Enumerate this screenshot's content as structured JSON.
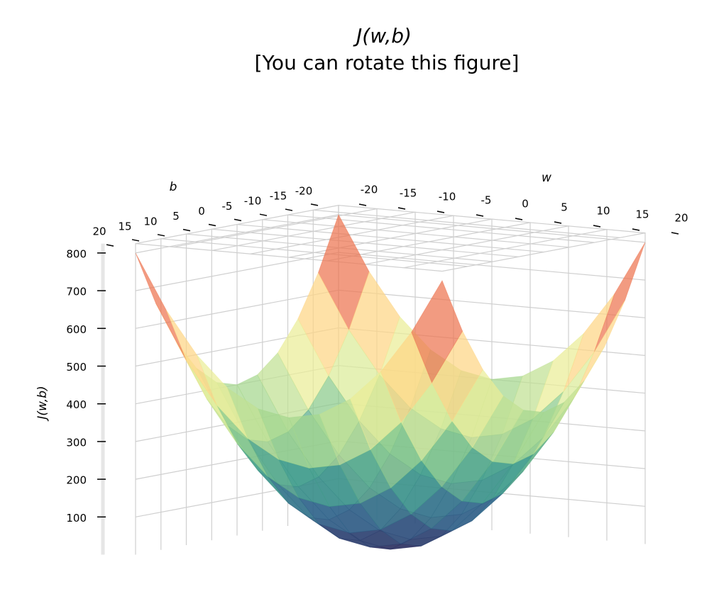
{
  "chart_data": {
    "type": "surface",
    "title": "J(w,b)",
    "subtitle": "[You can rotate this figure]",
    "xlabel": "w",
    "ylabel": "b",
    "zlabel": "J(w,b)",
    "xlim": [
      -20,
      20
    ],
    "ylim": [
      -20,
      20
    ],
    "zlim": [
      0,
      825
    ],
    "xticks": [
      -20,
      -15,
      -10,
      -5,
      0,
      5,
      10,
      15,
      20
    ],
    "yticks": [
      -20,
      -15,
      -10,
      -5,
      0,
      5,
      10,
      15,
      20
    ],
    "zticks": [
      100,
      200,
      300,
      400,
      500,
      600,
      700,
      800
    ],
    "grid": true,
    "colorscale": [
      "#2e2a5c",
      "#2f5f8a",
      "#3e9a8a",
      "#8fce8a",
      "#e6f09a",
      "#fde08b",
      "#f99055",
      "#d8444a",
      "#9e0142"
    ],
    "w": [
      -20,
      -16,
      -12,
      -8,
      -4,
      0,
      4,
      8,
      12,
      16,
      20
    ],
    "b": [
      -20,
      -16,
      -12,
      -8,
      -4,
      0,
      4,
      8,
      12,
      16,
      20
    ],
    "z": [
      [
        800,
        656,
        544,
        464,
        416,
        400,
        416,
        464,
        544,
        656,
        800
      ],
      [
        656,
        512,
        400,
        320,
        272,
        256,
        272,
        320,
        400,
        512,
        656
      ],
      [
        544,
        400,
        288,
        208,
        160,
        144,
        160,
        208,
        288,
        400,
        544
      ],
      [
        464,
        320,
        208,
        128,
        80,
        64,
        80,
        128,
        208,
        320,
        464
      ],
      [
        416,
        272,
        160,
        80,
        32,
        16,
        32,
        80,
        160,
        272,
        416
      ],
      [
        400,
        256,
        144,
        64,
        16,
        0,
        16,
        64,
        144,
        256,
        400
      ],
      [
        416,
        272,
        160,
        80,
        32,
        16,
        32,
        80,
        160,
        272,
        416
      ],
      [
        464,
        320,
        208,
        128,
        80,
        64,
        80,
        128,
        208,
        320,
        464
      ],
      [
        544,
        400,
        288,
        208,
        160,
        144,
        160,
        208,
        288,
        400,
        544
      ],
      [
        656,
        512,
        400,
        320,
        272,
        256,
        272,
        320,
        400,
        512,
        656
      ],
      [
        800,
        656,
        544,
        464,
        416,
        400,
        416,
        464,
        544,
        656,
        800
      ]
    ]
  }
}
